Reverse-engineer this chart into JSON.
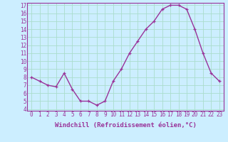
{
  "x": [
    0,
    1,
    2,
    3,
    4,
    5,
    6,
    7,
    8,
    9,
    10,
    11,
    12,
    13,
    14,
    15,
    16,
    17,
    18,
    19,
    20,
    21,
    22,
    23
  ],
  "y": [
    8,
    7.5,
    7,
    6.8,
    8.5,
    6.5,
    5,
    5,
    4.5,
    5,
    7.5,
    9,
    11,
    12.5,
    14,
    15,
    16.5,
    17,
    17,
    16.5,
    14,
    11,
    8.5,
    7.5
  ],
  "line_color": "#993399",
  "marker": "+",
  "bg_color": "#cceeff",
  "grid_color": "#aaddcc",
  "xlabel": "Windchill (Refroidissement éolien,°C)",
  "ylim": [
    4,
    17
  ],
  "xlim": [
    -0.5,
    23.5
  ],
  "yticks": [
    4,
    5,
    6,
    7,
    8,
    9,
    10,
    11,
    12,
    13,
    14,
    15,
    16,
    17
  ],
  "xticks": [
    0,
    1,
    2,
    3,
    4,
    5,
    6,
    7,
    8,
    9,
    10,
    11,
    12,
    13,
    14,
    15,
    16,
    17,
    18,
    19,
    20,
    21,
    22,
    23
  ],
  "tick_fontsize": 5.5,
  "xlabel_fontsize": 6.5,
  "line_width": 1.0,
  "marker_size": 3.5
}
